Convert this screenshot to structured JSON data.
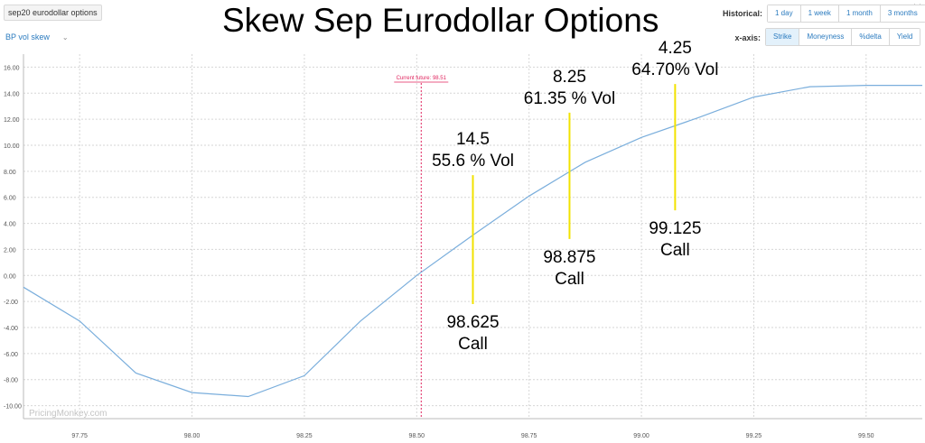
{
  "header": {
    "dataset_select": "sep20 eurodollar options",
    "view_select": "BP vol skew",
    "title": "Skew Sep Eurodollar Options"
  },
  "controls": {
    "historical_label": "Historical:",
    "historical_options": [
      "1 day",
      "1 week",
      "1 month",
      "3 months"
    ],
    "xaxis_label": "x-axis:",
    "xaxis_options": [
      "Strike",
      "Moneyness",
      "%delta",
      "Yield"
    ],
    "xaxis_selected": "Strike"
  },
  "watermark": "PricingMonkey.com",
  "chart_data": {
    "type": "line",
    "xlim": [
      97.625,
      99.625
    ],
    "ylim": [
      -11,
      17
    ],
    "x_ticks": [
      "97.75",
      "98.00",
      "98.25",
      "98.50",
      "98.75",
      "99.00",
      "99.25",
      "99.50"
    ],
    "y_ticks": [
      "16.00",
      "14.00",
      "12.00",
      "10.00",
      "8.00",
      "6.00",
      "4.00",
      "2.00",
      "0.00",
      "-2.00",
      "-4.00",
      "-6.00",
      "-8.00",
      "-10.00"
    ],
    "grid": true,
    "series": [
      {
        "color": "#7aaedc",
        "x": [
          97.625,
          97.75,
          97.875,
          98.0,
          98.125,
          98.25,
          98.375,
          98.5,
          98.625,
          98.75,
          98.875,
          99.0,
          99.125,
          99.25,
          99.375,
          99.5,
          99.625
        ],
        "y": [
          -0.9,
          -3.5,
          -7.5,
          -9.0,
          -9.3,
          -7.7,
          -3.5,
          0.0,
          3.1,
          6.1,
          8.7,
          10.6,
          12.1,
          13.7,
          14.5,
          14.6,
          14.6
        ]
      }
    ],
    "current_future": {
      "label": "Current future: 98.51",
      "x": 98.51,
      "color": "#e0245e"
    },
    "annotations": [
      {
        "x": 98.625,
        "y_top": 7.7,
        "y_bottom": -2.2,
        "top_lines": [
          "14.5",
          "55.6 % Vol"
        ],
        "bottom_lines": [
          "98.625",
          "Call"
        ]
      },
      {
        "x": 98.84,
        "y_top": 12.5,
        "y_bottom": 2.8,
        "top_lines": [
          "8.25",
          "61.35 % Vol"
        ],
        "bottom_lines": [
          "98.875",
          "Call"
        ]
      },
      {
        "x": 99.075,
        "y_top": 14.7,
        "y_bottom": 5.0,
        "top_lines": [
          "4.25",
          "64.70% Vol"
        ],
        "bottom_lines": [
          "99.125",
          "Call"
        ]
      }
    ],
    "annotation_color": "#f2e200"
  }
}
